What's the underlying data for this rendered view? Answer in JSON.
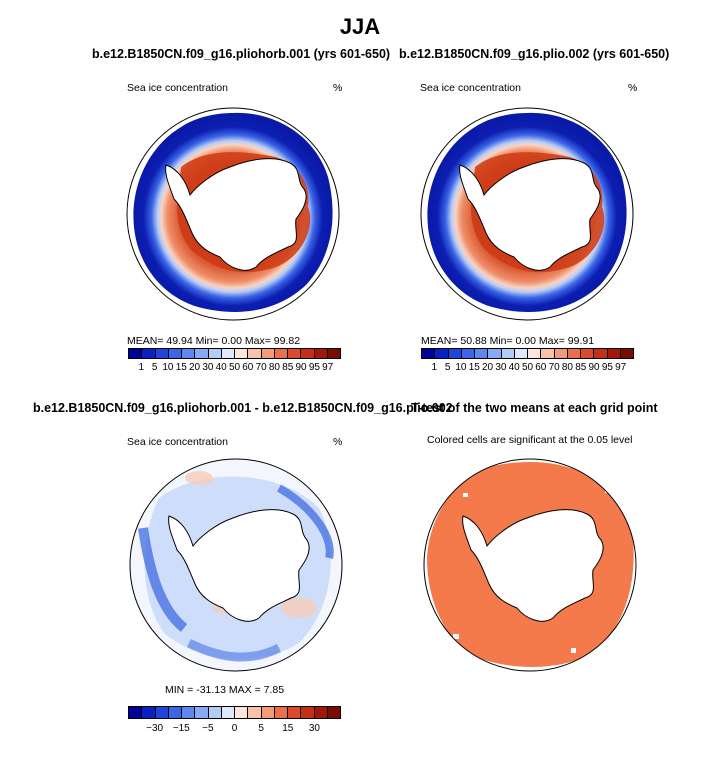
{
  "title": "JJA",
  "panels": [
    {
      "title": "b.e12.B1850CN.f09_g16.pliohorb.001 (yrs 601-650)",
      "left_label": "Sea ice concentration",
      "right_label": "%",
      "stats": "MEAN=   49.94   Min=     0.00   Max=   99.82"
    },
    {
      "title": "b.e12.B1850CN.f09_g16.plio.002 (yrs 601-650)",
      "left_label": "Sea ice concentration",
      "right_label": "%",
      "stats": "MEAN=   50.88   Min=     0.00   Max=   99.91"
    },
    {
      "title": "b.e12.B1850CN.f09_g16.pliohorb.001 - b.e12.B1850CN.f09_g16.plio.002",
      "left_label": "Sea ice concentration",
      "right_label": "%",
      "stats": "MIN = -31.13  MAX =    7.85"
    },
    {
      "title": "T-test of the two means at each grid point",
      "subtitle": "Colored cells are significant at the 0.05 level"
    }
  ],
  "colorbar_ice": {
    "colors": [
      "#00009a",
      "#0a1fc4",
      "#1f45dc",
      "#3b66e8",
      "#5c88f0",
      "#86aaf5",
      "#b3ccf8",
      "#dfe9fb",
      "#fde7dc",
      "#f9c3a8",
      "#f49a78",
      "#ea6e4a",
      "#db4a2a",
      "#c52f17",
      "#a2170a",
      "#7a0b03"
    ],
    "ticks": [
      "1",
      "5",
      "10",
      "15",
      "20",
      "30",
      "40",
      "50",
      "60",
      "70",
      "80",
      "85",
      "90",
      "95",
      "97"
    ]
  },
  "colorbar_diff": {
    "colors": [
      "#00009a",
      "#0a1fc4",
      "#1f45dc",
      "#3b66e8",
      "#5c88f0",
      "#86aaf5",
      "#b3ccf8",
      "#dfe9fb",
      "#fde7dc",
      "#f9c3a8",
      "#f49a78",
      "#ea6e4a",
      "#db4a2a",
      "#c52f17",
      "#a2170a",
      "#7a0b03"
    ],
    "ticks": [
      "−30",
      "−15",
      "−5",
      "0",
      "5",
      "15",
      "30"
    ]
  },
  "colors": {
    "ice_high": "#d44a26",
    "ice_mid": "#f28a62",
    "ice_low": "#1f3fd0",
    "ocean_low": "#0a1aa8",
    "diff_neg": "#a9c6f5",
    "diff_neg_strong": "#3c66e0",
    "diff_pos": "#f6cdb9",
    "signif": "#f47a4c"
  }
}
